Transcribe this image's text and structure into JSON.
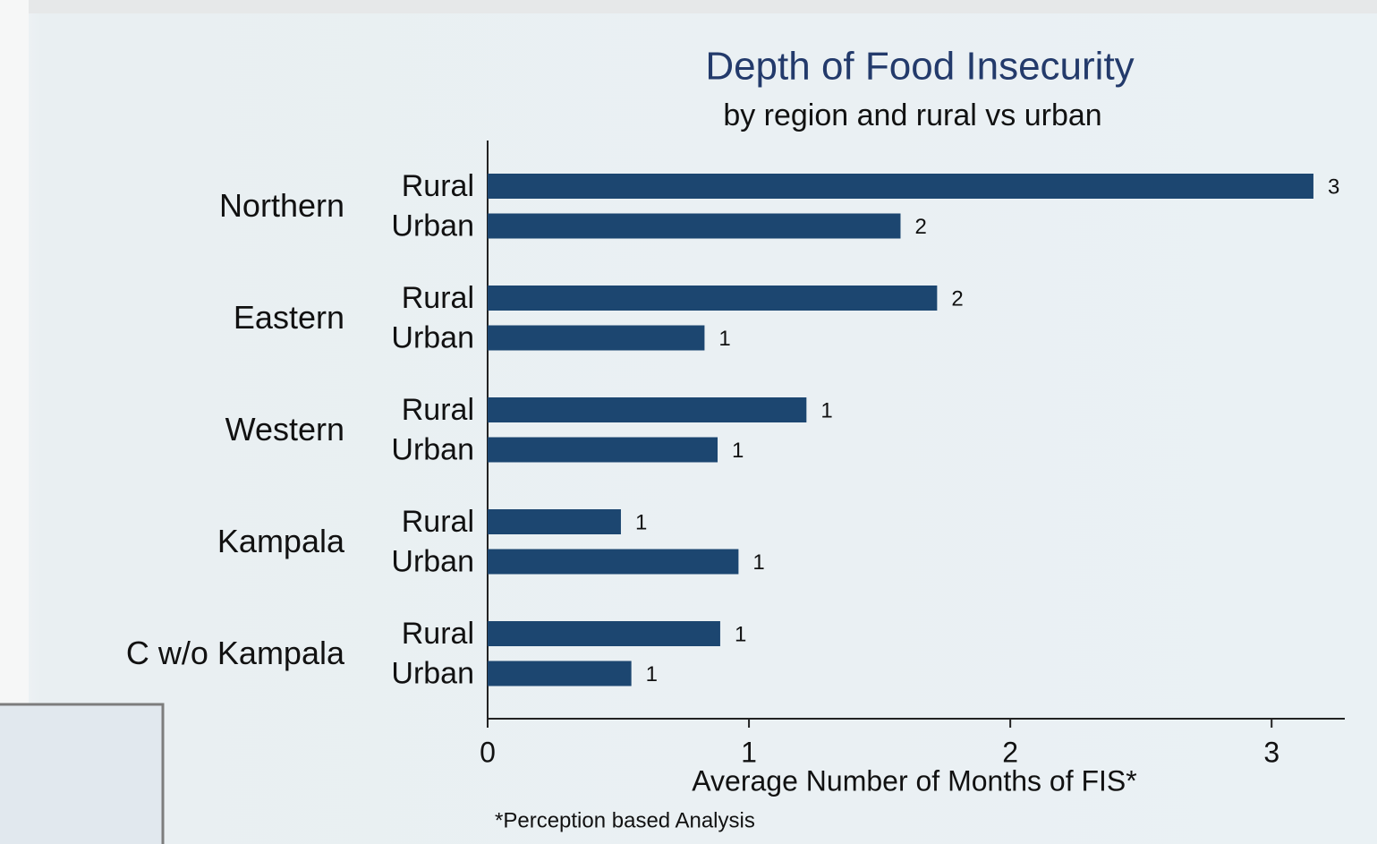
{
  "chart_data": {
    "type": "bar",
    "orientation": "horizontal",
    "title": "Depth of Food Insecurity",
    "subtitle": "by region and rural vs urban",
    "categories": [
      "Northern",
      "Eastern",
      "Western",
      "Kampala",
      "C w/o Kampala"
    ],
    "series": [
      {
        "name": "Rural",
        "color": "#1c4670",
        "values": [
          3.16,
          1.72,
          1.22,
          0.51,
          0.89
        ],
        "value_labels": [
          "3",
          "2",
          "1",
          "1",
          "1"
        ]
      },
      {
        "name": "Urban",
        "color": "#1c4670",
        "values": [
          1.58,
          0.83,
          0.88,
          0.96,
          0.55
        ],
        "value_labels": [
          "2",
          "1",
          "1",
          "1",
          "1"
        ]
      }
    ],
    "xlim": [
      0,
      3.28
    ],
    "xticks": [
      0,
      1,
      2,
      3
    ],
    "xlabel": "Average Number of Months of FIS*",
    "note": "*Perception based Analysis"
  }
}
